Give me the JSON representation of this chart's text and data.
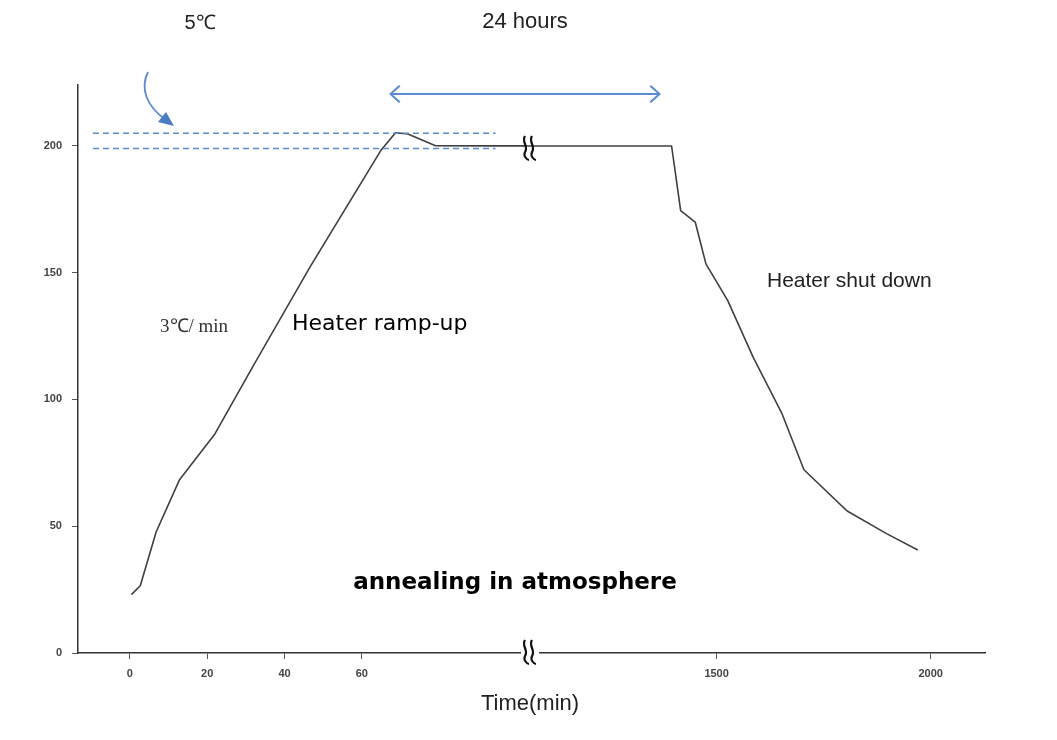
{
  "chart_data": [
    {
      "type": "line",
      "color": "#404040",
      "marker": "none",
      "x": [
        0.4,
        2.7,
        6.8,
        12.8,
        22,
        32.2,
        46.5,
        65,
        68.7,
        71.9,
        78.9,
        93.6,
        102.7
      ],
      "values": [
        23,
        26.5,
        47.7,
        68.2,
        86.4,
        114,
        152,
        198.4,
        205.2,
        204.7,
        200.1,
        200,
        200
      ],
      "xlim": [
        -13.4,
        102.7
      ],
      "xticks": [
        0,
        20,
        40,
        60
      ],
      "ylim": [
        0,
        224
      ],
      "yticks": [
        0,
        50,
        100,
        150,
        200
      ],
      "ref_lines": [
        {
          "axis": "y",
          "value": 205,
          "color": "#5b8bd0",
          "line_style": "dashed"
        },
        {
          "axis": "y",
          "value": 199,
          "color": "#5b8bd0",
          "line_style": "dashed"
        }
      ],
      "annotations": [
        "5℃",
        "3℃/ min",
        "Heater ramp-up",
        "annealing in atmosphere"
      ]
    },
    {
      "type": "line",
      "color": "#404040",
      "marker": "none",
      "x": [
        1057,
        1394.8,
        1416,
        1450,
        1475,
        1526,
        1585,
        1653,
        1704,
        1805,
        1898,
        1970
      ],
      "values": [
        200,
        200,
        174.5,
        170,
        153.5,
        139,
        116.8,
        94.3,
        72.3,
        56,
        47,
        40.6
      ],
      "xlim": [
        1057,
        2127
      ],
      "xticks": [
        1500,
        2000
      ],
      "ylim": [
        0,
        200
      ],
      "yticks": [
        0,
        50,
        100,
        150,
        200
      ],
      "tick_labels": "x",
      "xlabel": "Time(min)",
      "annotations": [
        "24 hours",
        "Heater shut down"
      ]
    }
  ]
}
